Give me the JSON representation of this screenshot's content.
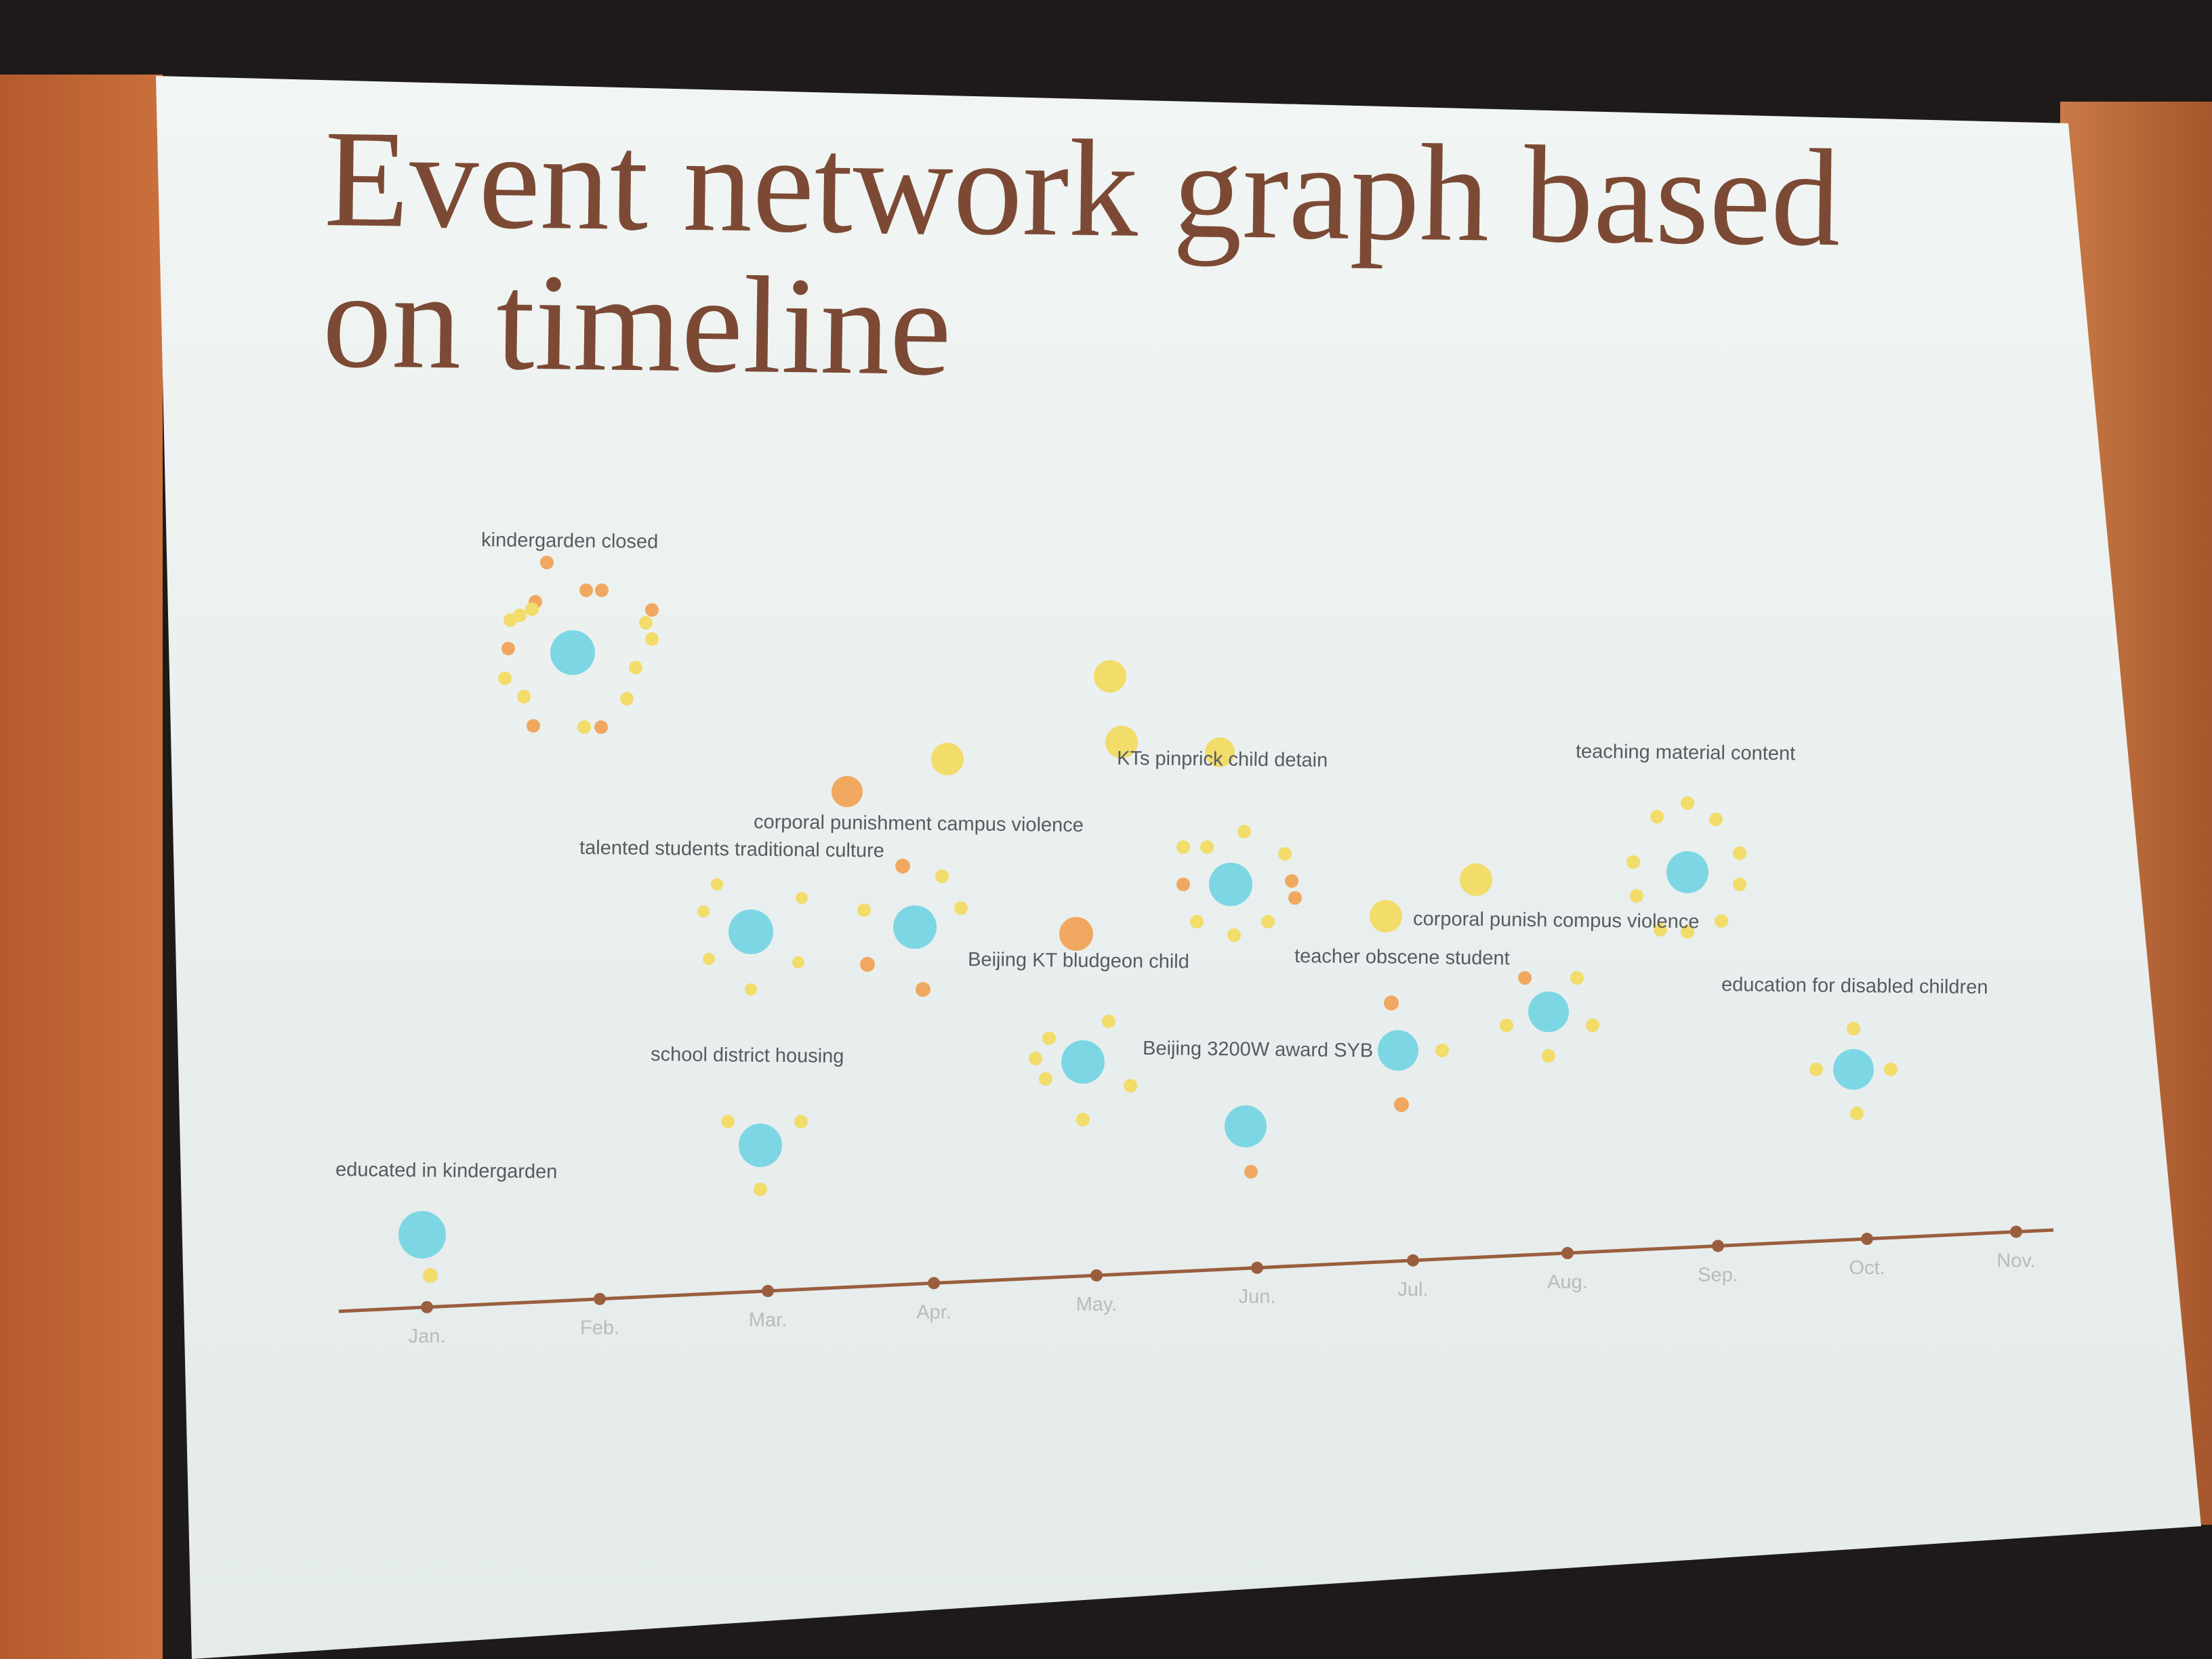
{
  "slide": {
    "title": "Event network graph based on timeline"
  },
  "colors": {
    "event_node": "#7dd6e4",
    "related_orange": "#f0a860",
    "related_yellow": "#f2dc6a",
    "timeline": "#9a5e3e",
    "title": "#7c4a34"
  },
  "timeline": {
    "months": [
      "Jan.",
      "Feb.",
      "Mar.",
      "Apr.",
      "May.",
      "Jun.",
      "Jul.",
      "Aug.",
      "Sep.",
      "Oct.",
      "Nov."
    ]
  },
  "events": [
    {
      "label": "kindergarden closed",
      "month": "Jan.",
      "related": 18
    },
    {
      "label": "educated in kindergarden",
      "month": "Jan.",
      "related": 1
    },
    {
      "label": "talented students traditional culture",
      "month": "Mar.",
      "related": 6
    },
    {
      "label": "school district housing",
      "month": "Mar.",
      "related": 3
    },
    {
      "label": "corporal punishment campus violence",
      "month": "Apr.",
      "related": 6
    },
    {
      "label": "Beijing KT bludgeon child",
      "month": "May.",
      "related": 6
    },
    {
      "label": "KTs pinprick child detain",
      "month": "Jun.",
      "related": 10
    },
    {
      "label": "Beijing 3200W award SYB",
      "month": "Jun.",
      "related": 1
    },
    {
      "label": "teacher obscene student",
      "month": "Jul.",
      "related": 3
    },
    {
      "label": "corporal punish compus violence",
      "month": "Aug.",
      "related": 5
    },
    {
      "label": "teaching material content",
      "month": "Sep.",
      "related": 10
    },
    {
      "label": "education for disabled children",
      "month": "Oct.",
      "related": 4
    }
  ]
}
